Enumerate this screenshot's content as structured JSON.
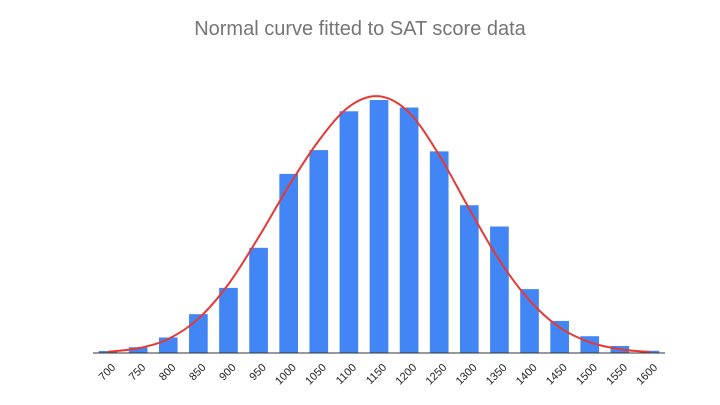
{
  "chart_data": {
    "type": "bar",
    "title": "Normal curve fitted to SAT score data",
    "xlabel": "",
    "ylabel": "",
    "categories": [
      "700",
      "750",
      "800",
      "850",
      "900",
      "950",
      "1000",
      "1050",
      "1100",
      "1150",
      "1200",
      "1250",
      "1300",
      "1350",
      "1400",
      "1450",
      "1500",
      "1550",
      "1600"
    ],
    "series": [
      {
        "type": "bar",
        "color": "#4285f4",
        "values": [
          0.8,
          2.3,
          6.2,
          15.5,
          26.0,
          42.0,
          71.5,
          81.0,
          96.5,
          101.0,
          98.0,
          80.5,
          59.0,
          50.5,
          25.5,
          12.8,
          6.7,
          2.8,
          0.9
        ]
      },
      {
        "type": "line",
        "color": "#e53935",
        "values": [
          0.5,
          1.9,
          5.6,
          13.7,
          27.5,
          46.2,
          66.6,
          84.8,
          98.3,
          102.5,
          96.0,
          79.0,
          57.5,
          37.0,
          21.0,
          10.2,
          4.3,
          1.5,
          0.4
        ]
      }
    ],
    "ylim": [
      0,
      105
    ],
    "grid": false,
    "legend": "none"
  }
}
